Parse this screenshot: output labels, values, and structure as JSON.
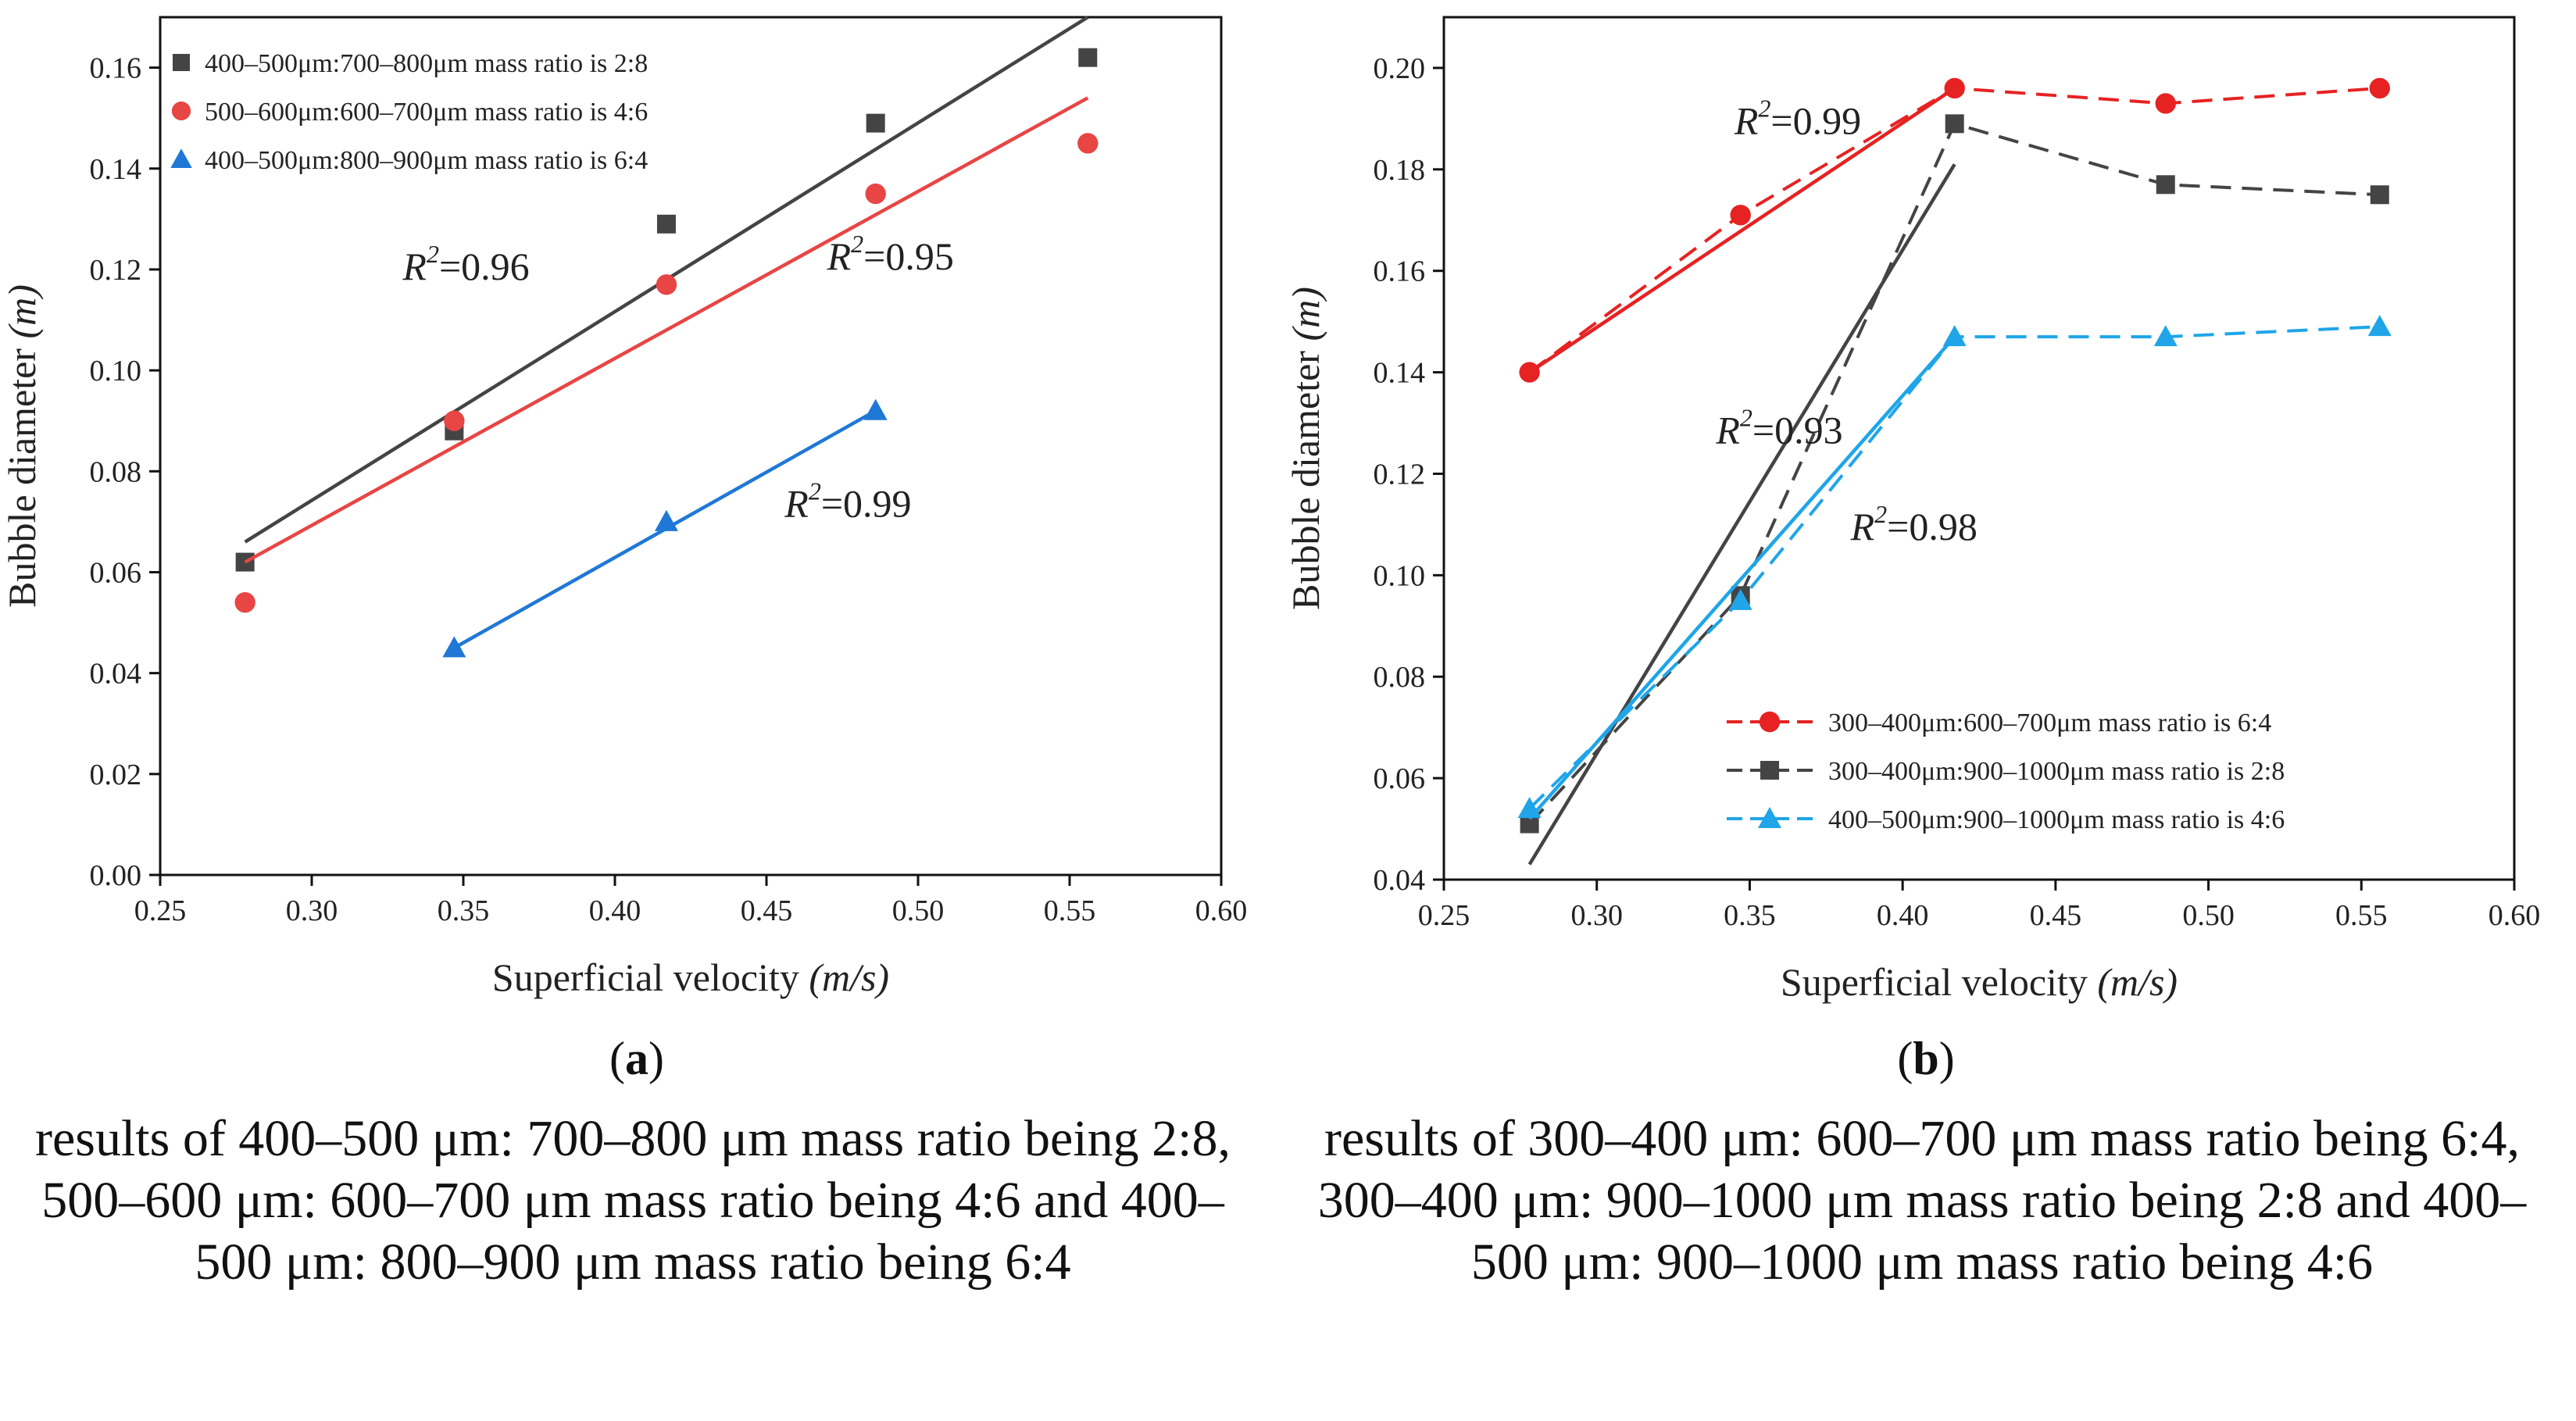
{
  "chart_data": [
    {
      "type": "scatter",
      "panel_label": "a",
      "xlabel_main": "Superficial velocity ",
      "xlabel_unit": "(m/s)",
      "ylabel_main": "Bubble diameter ",
      "ylabel_unit": "(m)",
      "xlim": [
        0.25,
        0.6
      ],
      "ylim": [
        0.0,
        0.17
      ],
      "xticks": [
        "0.25",
        "0.30",
        "0.35",
        "0.40",
        "0.45",
        "0.50",
        "0.55",
        "0.60"
      ],
      "yticks": [
        "0.00",
        "0.02",
        "0.04",
        "0.06",
        "0.08",
        "0.10",
        "0.12",
        "0.14",
        "0.16"
      ],
      "legend_position": "top-left",
      "series": [
        {
          "name": "400–500μm:700–800μm mass ratio is 2:8",
          "color": "#444444",
          "marker": "square",
          "x": [
            0.278,
            0.347,
            0.417,
            0.486,
            0.556
          ],
          "y": [
            0.062,
            0.088,
            0.129,
            0.149,
            0.162
          ],
          "fit": {
            "x": [
              0.278,
              0.556
            ],
            "y": [
              0.066,
              0.17
            ]
          },
          "r2": "0.96"
        },
        {
          "name": "500–600μm:600–700μm mass ratio is 4:6",
          "color": "#e84545",
          "marker": "circle",
          "x": [
            0.278,
            0.347,
            0.417,
            0.486,
            0.556
          ],
          "y": [
            0.054,
            0.09,
            0.117,
            0.135,
            0.145
          ],
          "fit": {
            "x": [
              0.278,
              0.556
            ],
            "y": [
              0.062,
              0.154
            ]
          },
          "r2": "0.95"
        },
        {
          "name": "400–500μm:800–900μm mass ratio is 6:4",
          "color": "#1f78d6",
          "marker": "triangle",
          "x": [
            0.347,
            0.417,
            0.486
          ],
          "y": [
            0.045,
            0.07,
            0.092
          ],
          "fit": {
            "x": [
              0.347,
              0.486
            ],
            "y": [
              0.045,
              0.092
            ]
          },
          "r2": "0.99"
        }
      ],
      "annotations": [
        {
          "text": "0.96",
          "x": 0.33,
          "y": 0.118
        },
        {
          "text": "0.95",
          "x": 0.47,
          "y": 0.12
        },
        {
          "text": "0.99",
          "x": 0.456,
          "y": 0.071
        }
      ],
      "caption": "results of 400–500 μm: 700–800 μm mass ratio being 2:8, 500–600 μm: 600–700 μm mass ratio being 4:6 and 400–500 μm: 800–900 μm mass ratio being 6:4"
    },
    {
      "type": "line",
      "panel_label": "b",
      "xlabel_main": "Superficial velocity ",
      "xlabel_unit": "(m/s)",
      "ylabel_main": "Bubble diameter ",
      "ylabel_unit": "(m)",
      "xlim": [
        0.25,
        0.6
      ],
      "ylim": [
        0.04,
        0.21
      ],
      "xticks": [
        "0.25",
        "0.30",
        "0.35",
        "0.40",
        "0.45",
        "0.50",
        "0.55",
        "0.60"
      ],
      "yticks": [
        "0.04",
        "0.06",
        "0.08",
        "0.10",
        "0.12",
        "0.14",
        "0.16",
        "0.18",
        "0.20"
      ],
      "legend_position": "bottom-right",
      "series": [
        {
          "name": "300–400μm:600–700μm mass ratio is 6:4",
          "color": "#e62222",
          "marker": "circle",
          "x": [
            0.278,
            0.347,
            0.417,
            0.486,
            0.556
          ],
          "y": [
            0.14,
            0.171,
            0.196,
            0.193,
            0.196
          ],
          "fit": {
            "x": [
              0.278,
              0.417
            ],
            "y": [
              0.14,
              0.196
            ]
          },
          "r2": "0.99"
        },
        {
          "name": "300–400μm:900–1000μm mass ratio is 2:8",
          "color": "#444444",
          "marker": "square",
          "x": [
            0.278,
            0.347,
            0.417,
            0.486,
            0.556
          ],
          "y": [
            0.051,
            0.096,
            0.189,
            0.177,
            0.175
          ],
          "fit": {
            "x": [
              0.278,
              0.417
            ],
            "y": [
              0.043,
              0.181
            ]
          },
          "r2": "0.93"
        },
        {
          "name": "400–500μm:900–1000μm mass ratio is 4:6",
          "color": "#1fa5e8",
          "marker": "triangle",
          "x": [
            0.278,
            0.347,
            0.417,
            0.486,
            0.556
          ],
          "y": [
            0.054,
            0.095,
            0.147,
            0.147,
            0.149
          ],
          "fit": {
            "x": [
              0.278,
              0.417
            ],
            "y": [
              0.052,
              0.147
            ]
          },
          "r2": "0.98"
        }
      ],
      "annotations": [
        {
          "text": "0.99",
          "x": 0.345,
          "y": 0.187
        },
        {
          "text": "0.93",
          "x": 0.339,
          "y": 0.126
        },
        {
          "text": "0.98",
          "x": 0.383,
          "y": 0.107
        }
      ],
      "caption": "results of 300–400 μm: 600–700 μm mass ratio being 6:4, 300–400 μm: 900–1000 μm mass ratio being 2:8 and 400–500 μm: 900–1000 μm mass ratio being 4:6"
    }
  ]
}
